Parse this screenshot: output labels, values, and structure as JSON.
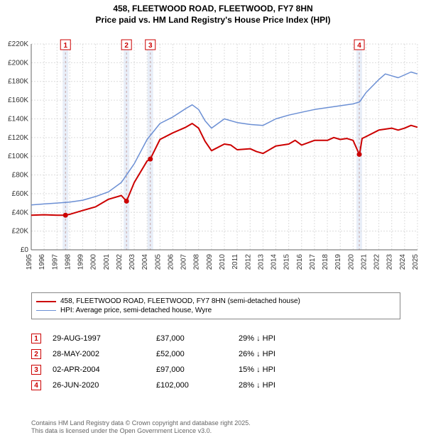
{
  "title_line1": "458, FLEETWOOD ROAD, FLEETWOOD, FY7 8HN",
  "title_line2": "Price paid vs. HM Land Registry's House Price Index (HPI)",
  "chart": {
    "type": "line",
    "background_color": "#ffffff",
    "plot_bg": "#ffffff",
    "grid_color": "#dcdcdc",
    "grid_dash": "2 2",
    "axis_color": "#666666",
    "tick_fontsize": 10,
    "label_fontsize": 10,
    "x": {
      "min": 1995,
      "max": 2025,
      "tick_step": 1,
      "ticks": [
        1995,
        1996,
        1997,
        1998,
        1999,
        2000,
        2001,
        2002,
        2003,
        2004,
        2005,
        2006,
        2007,
        2008,
        2009,
        2010,
        2011,
        2012,
        2013,
        2014,
        2015,
        2016,
        2017,
        2018,
        2019,
        2020,
        2021,
        2022,
        2023,
        2024,
        2025
      ]
    },
    "y": {
      "min": 0,
      "max": 220000,
      "ticks": [
        0,
        20000,
        40000,
        60000,
        80000,
        100000,
        120000,
        140000,
        160000,
        180000,
        200000,
        220000
      ],
      "tick_labels": [
        "£0",
        "£20K",
        "£40K",
        "£60K",
        "£80K",
        "£100K",
        "£120K",
        "£140K",
        "£160K",
        "£180K",
        "£200K",
        "£220K"
      ]
    },
    "series": [
      {
        "name": "458, FLEETWOOD ROAD, FLEETWOOD, FY7 8HN (semi-detached house)",
        "color": "#cc0000",
        "width": 2,
        "points": [
          [
            1995,
            37000
          ],
          [
            1996,
            37500
          ],
          [
            1997,
            37000
          ],
          [
            1997.66,
            37000
          ],
          [
            1998,
            38000
          ],
          [
            1999,
            42000
          ],
          [
            2000,
            46000
          ],
          [
            2001,
            54000
          ],
          [
            2002,
            58000
          ],
          [
            2002.4,
            52000
          ],
          [
            2003,
            72000
          ],
          [
            2004,
            95000
          ],
          [
            2004.25,
            97000
          ],
          [
            2005,
            118000
          ],
          [
            2006,
            125000
          ],
          [
            2007,
            131000
          ],
          [
            2007.5,
            135000
          ],
          [
            2008,
            130000
          ],
          [
            2008.5,
            116000
          ],
          [
            2009,
            106000
          ],
          [
            2010,
            113000
          ],
          [
            2010.5,
            112000
          ],
          [
            2011,
            107000
          ],
          [
            2012,
            108000
          ],
          [
            2012.5,
            105000
          ],
          [
            2013,
            103000
          ],
          [
            2014,
            111000
          ],
          [
            2015,
            113000
          ],
          [
            2015.5,
            117000
          ],
          [
            2016,
            112000
          ],
          [
            2017,
            117000
          ],
          [
            2018,
            117000
          ],
          [
            2018.5,
            120000
          ],
          [
            2019,
            118000
          ],
          [
            2019.5,
            119000
          ],
          [
            2020,
            117000
          ],
          [
            2020.48,
            102000
          ],
          [
            2020.5,
            102000
          ],
          [
            2020.7,
            119000
          ],
          [
            2021,
            121000
          ],
          [
            2022,
            128000
          ],
          [
            2023,
            130000
          ],
          [
            2023.5,
            128000
          ],
          [
            2024,
            130000
          ],
          [
            2024.5,
            133000
          ],
          [
            2025,
            131000
          ]
        ]
      },
      {
        "name": "HPI: Average price, semi-detached house, Wyre",
        "color": "#6b8fd4",
        "width": 1.5,
        "points": [
          [
            1995,
            48000
          ],
          [
            1996,
            49000
          ],
          [
            1997,
            50000
          ],
          [
            1998,
            51000
          ],
          [
            1999,
            53000
          ],
          [
            2000,
            57000
          ],
          [
            2001,
            62000
          ],
          [
            2002,
            72000
          ],
          [
            2003,
            92000
          ],
          [
            2004,
            118000
          ],
          [
            2005,
            135000
          ],
          [
            2006,
            142000
          ],
          [
            2007,
            151000
          ],
          [
            2007.5,
            155000
          ],
          [
            2008,
            150000
          ],
          [
            2008.5,
            138000
          ],
          [
            2009,
            130000
          ],
          [
            2010,
            140000
          ],
          [
            2011,
            136000
          ],
          [
            2012,
            134000
          ],
          [
            2013,
            133000
          ],
          [
            2014,
            140000
          ],
          [
            2015,
            144000
          ],
          [
            2016,
            147000
          ],
          [
            2017,
            150000
          ],
          [
            2018,
            152000
          ],
          [
            2019,
            154000
          ],
          [
            2020,
            156000
          ],
          [
            2020.5,
            158000
          ],
          [
            2021,
            168000
          ],
          [
            2022,
            182000
          ],
          [
            2022.5,
            188000
          ],
          [
            2023,
            186000
          ],
          [
            2023.5,
            184000
          ],
          [
            2024,
            187000
          ],
          [
            2024.5,
            190000
          ],
          [
            2025,
            188000
          ]
        ]
      }
    ],
    "event_bands": [
      {
        "label": "1",
        "x": 1997.66,
        "band_color": "#e8eef8"
      },
      {
        "label": "2",
        "x": 2002.4,
        "band_color": "#e8eef8"
      },
      {
        "label": "3",
        "x": 2004.25,
        "band_color": "#e8eef8"
      },
      {
        "label": "4",
        "x": 2020.48,
        "band_color": "#e8eef8"
      }
    ],
    "event_marker": {
      "border": "#cc0000",
      "text": "#cc0000",
      "fill": "#ffffff",
      "dash_color": "#c4a4a4"
    }
  },
  "legend": {
    "series1": "458, FLEETWOOD ROAD, FLEETWOOD, FY7 8HN (semi-detached house)",
    "series2": "HPI: Average price, semi-detached house, Wyre"
  },
  "events": [
    {
      "n": "1",
      "date": "29-AUG-1997",
      "price": "£37,000",
      "delta": "29% ↓ HPI"
    },
    {
      "n": "2",
      "date": "28-MAY-2002",
      "price": "£52,000",
      "delta": "26% ↓ HPI"
    },
    {
      "n": "3",
      "date": "02-APR-2004",
      "price": "£97,000",
      "delta": "15% ↓ HPI"
    },
    {
      "n": "4",
      "date": "26-JUN-2020",
      "price": "£102,000",
      "delta": "28% ↓ HPI"
    }
  ],
  "credit_line1": "Contains HM Land Registry data © Crown copyright and database right 2025.",
  "credit_line2": "This data is licensed under the Open Government Licence v3.0."
}
